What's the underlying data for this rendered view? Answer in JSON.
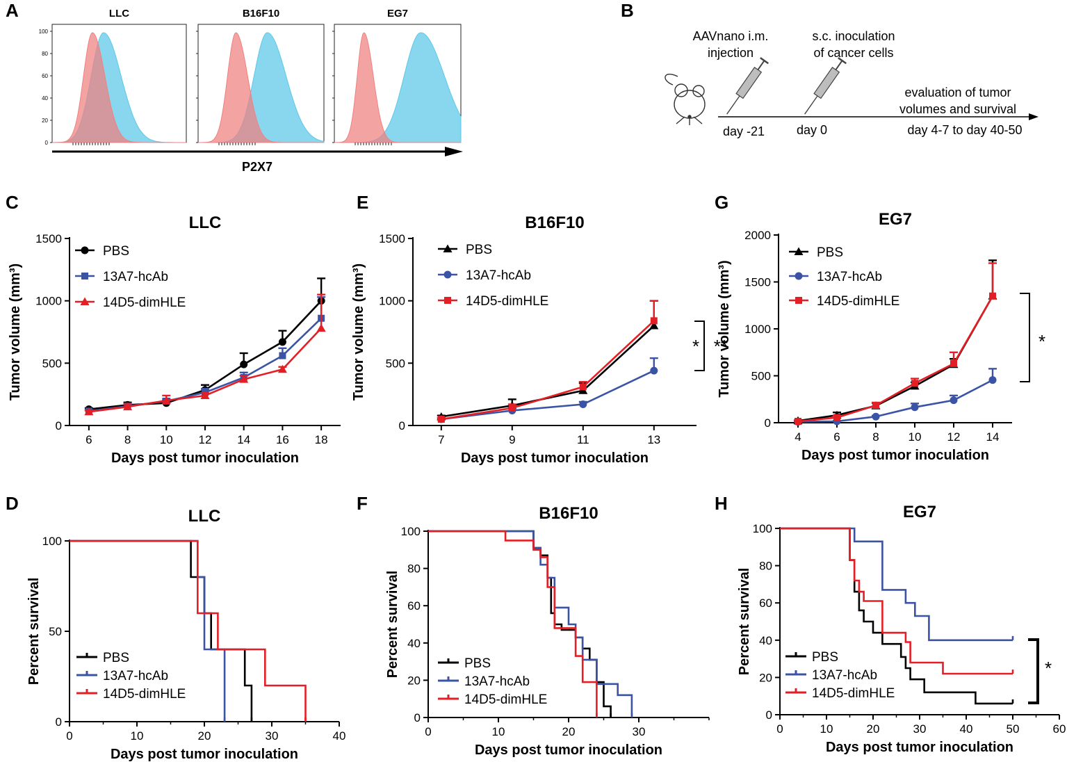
{
  "panel_labels": [
    "A",
    "B",
    "C",
    "D",
    "E",
    "F",
    "G",
    "H"
  ],
  "flow": {
    "panels": [
      {
        "title": "LLC",
        "red_peak": 18,
        "blue_peak": 23,
        "red_width": 5,
        "blue_width": 7
      },
      {
        "title": "B16F10",
        "red_peak": 18,
        "blue_peak": 33,
        "red_width": 5,
        "blue_width": 8
      },
      {
        "title": "EG7",
        "red_peak": 14,
        "blue_peak": 41,
        "red_width": 4,
        "blue_width": 10
      }
    ],
    "yticks": [
      "100",
      "80",
      "60",
      "40",
      "20",
      "0"
    ],
    "xlabel": "P2X7",
    "colors": {
      "control": "#f08080",
      "stained": "#5bc8e8"
    }
  },
  "schematic": {
    "step1": [
      "AAVnano i.m.",
      "injection"
    ],
    "step2": [
      "s.c. inoculation",
      "of cancer cells"
    ],
    "step3": [
      "evaluation of tumor",
      "volumes and survival"
    ],
    "day1": "day -21",
    "day2": "day 0",
    "day3": "day 4-7 to day 40-50"
  },
  "colors": {
    "PBS": "#000000",
    "13A7-hcAb": "#3a53a4",
    "14D5-dimHLE": "#e31e24"
  },
  "chart_data": [
    {
      "id": "C",
      "type": "line",
      "title": "LLC",
      "xlabel": "Days post tumor inoculation",
      "ylabel": "Tumor volume (mm³)",
      "xlim": [
        5,
        19
      ],
      "ylim": [
        0,
        1500
      ],
      "xticks": [
        6,
        8,
        10,
        12,
        14,
        16,
        18
      ],
      "yticks": [
        0,
        500,
        1000,
        1500
      ],
      "series": [
        {
          "name": "PBS",
          "marker": "circle",
          "x": [
            6,
            8,
            10,
            12,
            14,
            16,
            18
          ],
          "values": [
            130,
            165,
            180,
            285,
            490,
            670,
            1000
          ],
          "err": [
            10,
            20,
            20,
            40,
            90,
            90,
            180
          ]
        },
        {
          "name": "13A7-hcAb",
          "marker": "square",
          "x": [
            6,
            8,
            10,
            12,
            14,
            16,
            18
          ],
          "values": [
            115,
            155,
            195,
            265,
            385,
            560,
            860
          ],
          "err": [
            10,
            20,
            20,
            30,
            40,
            60,
            170
          ]
        },
        {
          "name": "14D5-dimHLE",
          "marker": "triangle",
          "x": [
            6,
            8,
            10,
            12,
            14,
            16,
            18
          ],
          "values": [
            110,
            150,
            200,
            240,
            370,
            450,
            780
          ],
          "err": [
            10,
            20,
            40,
            20,
            30,
            20,
            270
          ]
        }
      ]
    },
    {
      "id": "E",
      "type": "line",
      "title": "B16F10",
      "xlabel": "Days post tumor inoculation",
      "ylabel": "Tumor volume (mm³)",
      "xlim": [
        6.2,
        14.2
      ],
      "ylim": [
        0,
        1500
      ],
      "xticks": [
        7,
        9,
        11,
        13
      ],
      "yticks": [
        0,
        500,
        1000,
        1500
      ],
      "annotation": "**",
      "series": [
        {
          "name": "PBS",
          "marker": "triangle",
          "x": [
            7,
            9,
            11,
            13
          ],
          "values": [
            70,
            160,
            280,
            800
          ],
          "err": [
            10,
            50,
            60,
            200
          ]
        },
        {
          "name": "13A7-hcAb",
          "marker": "circle",
          "x": [
            7,
            9,
            11,
            13
          ],
          "values": [
            50,
            120,
            170,
            440
          ],
          "err": [
            10,
            20,
            20,
            100
          ]
        },
        {
          "name": "14D5-dimHLE",
          "marker": "square",
          "x": [
            7,
            9,
            11,
            13
          ],
          "values": [
            50,
            140,
            310,
            840
          ],
          "err": [
            10,
            30,
            40,
            160
          ]
        }
      ]
    },
    {
      "id": "G",
      "type": "line",
      "title": "EG7",
      "xlabel": "Days post tumor inoculation",
      "ylabel": "Tumor volume (mm³)",
      "xlim": [
        3,
        15
      ],
      "ylim": [
        0,
        2000
      ],
      "xticks": [
        4,
        6,
        8,
        10,
        12,
        14
      ],
      "yticks": [
        0,
        500,
        1000,
        1500,
        2000
      ],
      "annotation": "*",
      "series": [
        {
          "name": "PBS",
          "marker": "triangle",
          "x": [
            4,
            6,
            8,
            10,
            12,
            14
          ],
          "values": [
            20,
            80,
            180,
            390,
            620,
            1350
          ],
          "err": [
            5,
            30,
            30,
            40,
            60,
            380
          ]
        },
        {
          "name": "13A7-hcAb",
          "marker": "circle",
          "x": [
            4,
            6,
            8,
            10,
            12,
            14
          ],
          "values": [
            10,
            15,
            65,
            165,
            240,
            455
          ],
          "err": [
            5,
            5,
            10,
            40,
            50,
            120
          ]
        },
        {
          "name": "14D5-dimHLE",
          "marker": "square",
          "x": [
            4,
            6,
            8,
            10,
            12,
            14
          ],
          "values": [
            15,
            55,
            185,
            420,
            630,
            1350
          ],
          "err": [
            5,
            20,
            30,
            50,
            120,
            350
          ]
        }
      ]
    },
    {
      "id": "D",
      "type": "line",
      "step": true,
      "title": "LLC",
      "xlabel": "Days post tumor inoculation",
      "ylabel": "Percent survival",
      "xlim": [
        0,
        40
      ],
      "ylim": [
        0,
        100
      ],
      "xticks": [
        0,
        10,
        20,
        30,
        40
      ],
      "yticks": [
        0,
        50,
        100
      ],
      "series": [
        {
          "name": "PBS",
          "x": [
            0,
            18,
            20,
            21,
            26,
            27
          ],
          "values": [
            100,
            80,
            60,
            40,
            20,
            0
          ]
        },
        {
          "name": "13A7-hcAb",
          "x": [
            0,
            19,
            20,
            23
          ],
          "values": [
            100,
            80,
            40,
            0
          ]
        },
        {
          "name": "14D5-dimHLE",
          "x": [
            0,
            19,
            22,
            25,
            29,
            35
          ],
          "values": [
            100,
            60,
            40,
            40,
            20,
            0
          ]
        }
      ]
    },
    {
      "id": "F",
      "type": "line",
      "step": true,
      "title": "B16F10",
      "xlabel": "Days post tumor inoculation",
      "ylabel": "Percent survival",
      "xlim": [
        0,
        40
      ],
      "ylim": [
        0,
        100
      ],
      "xticks": [
        0,
        10,
        20,
        30
      ],
      "yticks": [
        0,
        20,
        40,
        60,
        80,
        100
      ],
      "series": [
        {
          "name": "PBS",
          "x": [
            0,
            15,
            16,
            17,
            17.5,
            18,
            19,
            21,
            22,
            23,
            24,
            25,
            26
          ],
          "values": [
            100,
            91,
            87,
            75,
            56,
            50,
            47,
            43,
            37,
            31,
            19,
            6,
            0
          ]
        },
        {
          "name": "13A7-hcAb",
          "x": [
            0,
            15,
            16,
            17,
            18,
            20,
            21,
            22,
            24,
            27,
            29
          ],
          "values": [
            100,
            91,
            82,
            75,
            59,
            50,
            43,
            31,
            18,
            12,
            0
          ]
        },
        {
          "name": "14D5-dimHLE",
          "x": [
            0,
            11,
            15,
            16,
            17,
            18,
            21,
            22,
            24
          ],
          "values": [
            100,
            95,
            90,
            86,
            70,
            48,
            33,
            19,
            0
          ]
        }
      ]
    },
    {
      "id": "H",
      "type": "line",
      "step": true,
      "title": "EG7",
      "xlabel": "Days post tumor inoculation",
      "ylabel": "Percent survival",
      "xlim": [
        0,
        60
      ],
      "ylim": [
        0,
        100
      ],
      "xticks": [
        0,
        10,
        20,
        30,
        40,
        50,
        60
      ],
      "yticks": [
        0,
        20,
        40,
        60,
        80,
        100
      ],
      "annotation": "*",
      "series": [
        {
          "name": "PBS",
          "x": [
            0,
            15,
            16,
            17,
            18,
            19,
            20,
            22,
            26,
            27,
            28,
            29,
            31,
            42,
            50
          ],
          "values": [
            100,
            83,
            66,
            56,
            50,
            50,
            44,
            38,
            31,
            25,
            19,
            19,
            12,
            6,
            6
          ]
        },
        {
          "name": "13A7-hcAb",
          "x": [
            0,
            16,
            22,
            27,
            29,
            32,
            50
          ],
          "values": [
            100,
            93,
            67,
            60,
            53,
            40,
            40
          ]
        },
        {
          "name": "14D5-dimHLE",
          "x": [
            0,
            15,
            16,
            17,
            18,
            22,
            27,
            28,
            35,
            50
          ],
          "values": [
            100,
            83,
            72,
            66,
            61,
            44,
            39,
            28,
            22,
            22
          ]
        }
      ]
    }
  ]
}
